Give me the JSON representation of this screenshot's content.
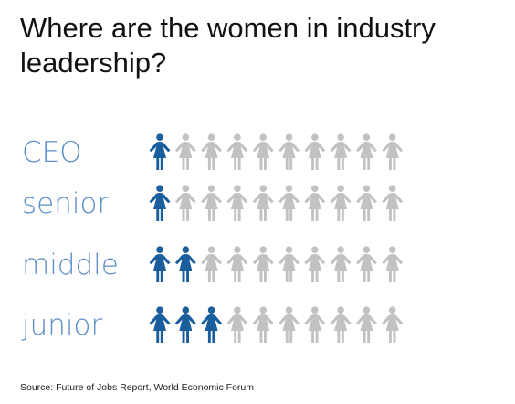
{
  "title": "Where are the women in industry leadership?",
  "source": "Source: Future of Jobs Report, World Economic Forum",
  "colors": {
    "women": "#1b5e9e",
    "men": "#c2c2c2",
    "label": "#5b8ec9"
  },
  "icons": {
    "person": "person-icon"
  },
  "chart_data": {
    "type": "pictogram",
    "title": "Where are the women in industry leadership?",
    "unit_per_icon": "1 of 10",
    "total_icons": 10,
    "categories": [
      "CEO",
      "senior",
      "middle",
      "junior"
    ],
    "series": [
      {
        "name": "",
        "values": [
          1.0,
          1.5,
          2.5,
          3.5
        ]
      }
    ]
  }
}
